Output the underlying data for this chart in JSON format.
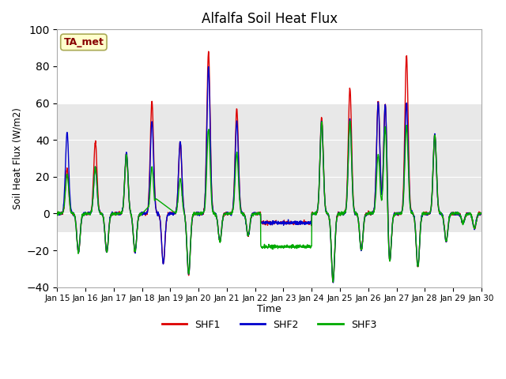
{
  "title": "Alfalfa Soil Heat Flux",
  "ylabel": "Soil Heat Flux (W/m2)",
  "xlabel": "Time",
  "ylim": [
    -40,
    100
  ],
  "xlim": [
    0,
    15
  ],
  "line_colors": [
    "#dd0000",
    "#0000cc",
    "#00aa00"
  ],
  "line_labels": [
    "SHF1",
    "SHF2",
    "SHF3"
  ],
  "line_width": 1.0,
  "annotation_text": "TA_met",
  "annotation_color": "#880000",
  "annotation_bg": "#ffffcc",
  "annotation_border": "#aaaa55",
  "bg_band_y1": -10,
  "bg_band_y2": 60,
  "bg_color": "#e8e8e8",
  "tick_labels": [
    "Jan 15",
    "Jan 16",
    "Jan 17",
    "Jan 18",
    "Jan 19",
    "Jan 20",
    "Jan 21",
    "Jan 22",
    "Jan 23",
    "Jan 24",
    "Jan 25",
    "Jan 26",
    "Jan 27",
    "Jan 28",
    "Jan 29",
    "Jan 30"
  ],
  "yticks": [
    -40,
    -20,
    0,
    20,
    40,
    60,
    80,
    100
  ],
  "n_per_day": 144,
  "days": 15
}
